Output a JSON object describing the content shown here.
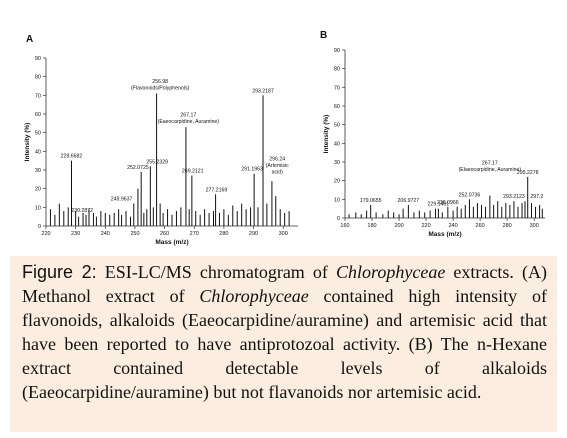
{
  "panels": [
    {
      "label": "A",
      "chart_data": {
        "type": "bar",
        "xlabel": "Mass (m/z)",
        "ylabel": "Intensity (%)",
        "xlim": [
          220,
          305
        ],
        "ylim": [
          0,
          90
        ],
        "x_ticks": [
          "220",
          "230",
          "240",
          "250",
          "260",
          "270",
          "280",
          "290",
          "300"
        ],
        "y_ticks": [
          "0",
          "10",
          "20",
          "30",
          "40",
          "50",
          "60",
          "70",
          "80",
          "90"
        ],
        "peaks": [
          {
            "x": 221.5,
            "y": 9
          },
          {
            "x": 223,
            "y": 6
          },
          {
            "x": 224.5,
            "y": 12
          },
          {
            "x": 226,
            "y": 8
          },
          {
            "x": 227.5,
            "y": 10
          },
          {
            "x": 228.6,
            "y": 35
          },
          {
            "x": 230,
            "y": 8
          },
          {
            "x": 231,
            "y": 5
          },
          {
            "x": 232.5,
            "y": 7
          },
          {
            "x": 233.5,
            "y": 6
          },
          {
            "x": 234.5,
            "y": 9
          },
          {
            "x": 236,
            "y": 7
          },
          {
            "x": 237,
            "y": 5
          },
          {
            "x": 238.5,
            "y": 8
          },
          {
            "x": 240,
            "y": 7
          },
          {
            "x": 241.5,
            "y": 6
          },
          {
            "x": 243,
            "y": 7
          },
          {
            "x": 244.5,
            "y": 9
          },
          {
            "x": 245.5,
            "y": 6
          },
          {
            "x": 247,
            "y": 8
          },
          {
            "x": 248.5,
            "y": 5
          },
          {
            "x": 249.6,
            "y": 12
          },
          {
            "x": 251,
            "y": 20
          },
          {
            "x": 252.1,
            "y": 29
          },
          {
            "x": 253,
            "y": 7
          },
          {
            "x": 254,
            "y": 9
          },
          {
            "x": 255.2,
            "y": 32
          },
          {
            "x": 256.2,
            "y": 10
          },
          {
            "x": 257.3,
            "y": 71
          },
          {
            "x": 258.5,
            "y": 12
          },
          {
            "x": 259.5,
            "y": 7
          },
          {
            "x": 261,
            "y": 9
          },
          {
            "x": 262.5,
            "y": 6
          },
          {
            "x": 264,
            "y": 8
          },
          {
            "x": 265.5,
            "y": 10
          },
          {
            "x": 267.2,
            "y": 53
          },
          {
            "x": 268.3,
            "y": 9
          },
          {
            "x": 269.2,
            "y": 27
          },
          {
            "x": 270.5,
            "y": 8
          },
          {
            "x": 272,
            "y": 6
          },
          {
            "x": 273.5,
            "y": 9
          },
          {
            "x": 275,
            "y": 7
          },
          {
            "x": 276.5,
            "y": 8
          },
          {
            "x": 277.2,
            "y": 17
          },
          {
            "x": 278.5,
            "y": 7
          },
          {
            "x": 280,
            "y": 9
          },
          {
            "x": 281.5,
            "y": 6
          },
          {
            "x": 283,
            "y": 11
          },
          {
            "x": 284.5,
            "y": 8
          },
          {
            "x": 286,
            "y": 12
          },
          {
            "x": 287.5,
            "y": 9
          },
          {
            "x": 289,
            "y": 10
          },
          {
            "x": 290.2,
            "y": 28
          },
          {
            "x": 291.5,
            "y": 10
          },
          {
            "x": 293.2,
            "y": 70
          },
          {
            "x": 294.5,
            "y": 12
          },
          {
            "x": 296.2,
            "y": 24
          },
          {
            "x": 297.5,
            "y": 16
          },
          {
            "x": 299,
            "y": 9
          },
          {
            "x": 300.5,
            "y": 7
          },
          {
            "x": 302,
            "y": 8
          }
        ],
        "annotations": [
          {
            "text": "228.6682",
            "x": 228.6,
            "y": 35
          },
          {
            "text": "230.2872",
            "x": 232.2,
            "y": 6
          },
          {
            "text": "249.9637",
            "x": 245.5,
            "y": 12
          },
          {
            "text": "252.0725",
            "x": 251,
            "y": 29
          },
          {
            "text": "255.2329",
            "x": 257.5,
            "y": 32
          },
          {
            "text": "256.98",
            "x": 258.5,
            "y": 71,
            "leader": true,
            "sub": "(Flavonoids/Polyphenols)"
          },
          {
            "text": "267.17",
            "x": 268,
            "y": 53,
            "leader": true,
            "sub": "(Eaeocarpidine, Auramine)"
          },
          {
            "text": "269.2121",
            "x": 269.5,
            "y": 27
          },
          {
            "text": "277.2169",
            "x": 277.5,
            "y": 17
          },
          {
            "text": "291.1963",
            "x": 289.5,
            "y": 28
          },
          {
            "text": "293.2187",
            "x": 293.2,
            "y": 70
          },
          {
            "text": "296.24",
            "x": 298,
            "y": 26,
            "leader": true,
            "sub": "(Artemisic",
            "sub2": "acid)"
          }
        ]
      }
    },
    {
      "label": "B",
      "chart_data": {
        "type": "bar",
        "xlabel": "Mass (m/z)",
        "ylabel": "Intensity (%)",
        "xlim": [
          160,
          308
        ],
        "ylim": [
          0,
          90
        ],
        "x_ticks": [
          "160",
          "180",
          "200",
          "220",
          "240",
          "260",
          "280",
          "300"
        ],
        "y_ticks": [
          "0",
          "10",
          "20",
          "30",
          "40",
          "50",
          "60",
          "70",
          "80",
          "90"
        ],
        "peaks": [
          {
            "x": 163,
            "y": 2
          },
          {
            "x": 168,
            "y": 3
          },
          {
            "x": 172,
            "y": 2
          },
          {
            "x": 176,
            "y": 4
          },
          {
            "x": 179,
            "y": 7
          },
          {
            "x": 183,
            "y": 3
          },
          {
            "x": 188,
            "y": 2
          },
          {
            "x": 192,
            "y": 4
          },
          {
            "x": 196,
            "y": 3
          },
          {
            "x": 200,
            "y": 2
          },
          {
            "x": 203,
            "y": 5
          },
          {
            "x": 206.9,
            "y": 7
          },
          {
            "x": 211,
            "y": 3
          },
          {
            "x": 215,
            "y": 4
          },
          {
            "x": 219,
            "y": 3
          },
          {
            "x": 223,
            "y": 4
          },
          {
            "x": 227,
            "y": 5
          },
          {
            "x": 229.1,
            "y": 5
          },
          {
            "x": 232,
            "y": 3
          },
          {
            "x": 236.1,
            "y": 6
          },
          {
            "x": 240,
            "y": 4
          },
          {
            "x": 243,
            "y": 6
          },
          {
            "x": 246,
            "y": 5
          },
          {
            "x": 249,
            "y": 7
          },
          {
            "x": 252.1,
            "y": 10
          },
          {
            "x": 255,
            "y": 6
          },
          {
            "x": 258,
            "y": 8
          },
          {
            "x": 261,
            "y": 7
          },
          {
            "x": 264,
            "y": 6
          },
          {
            "x": 267.2,
            "y": 12
          },
          {
            "x": 270,
            "y": 7
          },
          {
            "x": 273,
            "y": 9
          },
          {
            "x": 276,
            "y": 6
          },
          {
            "x": 279,
            "y": 8
          },
          {
            "x": 282,
            "y": 7
          },
          {
            "x": 285,
            "y": 9
          },
          {
            "x": 288,
            "y": 6
          },
          {
            "x": 291,
            "y": 8
          },
          {
            "x": 293.2,
            "y": 9
          },
          {
            "x": 295.2,
            "y": 22
          },
          {
            "x": 298,
            "y": 8
          },
          {
            "x": 301,
            "y": 6
          },
          {
            "x": 304,
            "y": 7
          },
          {
            "x": 306,
            "y": 5
          }
        ],
        "annotations": [
          {
            "text": "179.0655",
            "x": 179,
            "y": 7
          },
          {
            "text": "206.9727",
            "x": 206.9,
            "y": 7
          },
          {
            "text": "229.1451",
            "x": 229.1,
            "y": 5
          },
          {
            "text": "236.0966",
            "x": 236.1,
            "y": 6
          },
          {
            "text": "252.0736",
            "x": 252.1,
            "y": 10
          },
          {
            "text": "267.17",
            "x": 267.2,
            "y": 23,
            "sub": "(Elaeocarpidine, Auramine)"
          },
          {
            "text": "293.2123",
            "x": 285,
            "y": 9
          },
          {
            "text": "295.2278",
            "x": 295.2,
            "y": 22
          },
          {
            "text": "297.2",
            "x": 302,
            "y": 9
          }
        ]
      }
    }
  ],
  "caption": {
    "figure_label": "Figure 2:",
    "parts": [
      {
        "t": " ESI-LC/MS chromatogram of "
      },
      {
        "t": "Chlorophyceae",
        "i": true
      },
      {
        "t": " extracts. (A) Methanol extract of "
      },
      {
        "t": "Chlorophyceae",
        "i": true
      },
      {
        "t": " contained high intensity of flavonoids, alkaloids (Eaeocarpidine/auramine) and artemisic acid that have been reported to have antiprotozoal activity. (B) The n-Hexane extract contained detectable levels of alkaloids (Eaeocarpidine/auramine) but not flavanoids nor artemisic acid."
      }
    ]
  }
}
